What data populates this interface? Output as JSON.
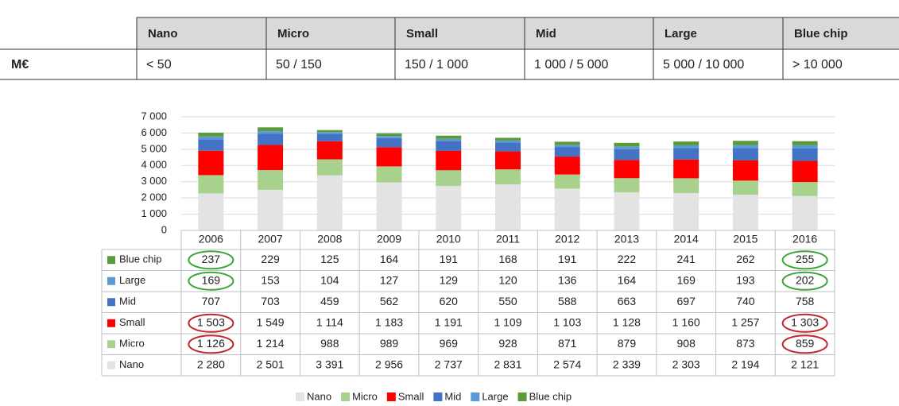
{
  "size_table": {
    "header": [
      "Nano",
      "Micro",
      "Small",
      "Mid",
      "Large",
      "Blue chip"
    ],
    "row": [
      "M€",
      "< 50",
      "50 / 150",
      "150 / 1 000",
      "1 000 / 5 000",
      "5 000 / 10 000",
      "> 10 000"
    ]
  },
  "chart_data": {
    "type": "bar",
    "stacked": true,
    "categories": [
      "2006",
      "2007",
      "2008",
      "2009",
      "2010",
      "2011",
      "2012",
      "2013",
      "2014",
      "2015",
      "2016"
    ],
    "series": [
      {
        "name": "Nano",
        "color": "#e3e3e3",
        "values": [
          2280,
          2501,
          3391,
          2956,
          2737,
          2831,
          2574,
          2339,
          2303,
          2194,
          2121
        ],
        "value_labels": [
          "2 280",
          "2 501",
          "3 391",
          "2 956",
          "2 737",
          "2 831",
          "2 574",
          "2 339",
          "2 303",
          "2 194",
          "2 121"
        ]
      },
      {
        "name": "Micro",
        "color": "#a9d18e",
        "values": [
          1126,
          1214,
          988,
          989,
          969,
          928,
          871,
          879,
          908,
          873,
          859
        ],
        "value_labels": [
          "1 126",
          "1 214",
          "988",
          "989",
          "969",
          "928",
          "871",
          "879",
          "908",
          "873",
          "859"
        ]
      },
      {
        "name": "Small",
        "color": "#ff0000",
        "values": [
          1503,
          1549,
          1114,
          1183,
          1191,
          1109,
          1103,
          1128,
          1160,
          1257,
          1303
        ],
        "value_labels": [
          "1 503",
          "1 549",
          "1 114",
          "1 183",
          "1 191",
          "1 109",
          "1 103",
          "1 128",
          "1 160",
          "1 257",
          "1 303"
        ]
      },
      {
        "name": "Mid",
        "color": "#4472c4",
        "values": [
          707,
          703,
          459,
          562,
          620,
          550,
          588,
          663,
          697,
          740,
          758
        ]
      },
      {
        "name": "Large",
        "color": "#5b9bd5",
        "values": [
          169,
          153,
          104,
          127,
          129,
          120,
          136,
          164,
          169,
          193,
          202
        ]
      },
      {
        "name": "Blue chip",
        "color": "#5a9a3a",
        "values": [
          237,
          229,
          125,
          164,
          191,
          168,
          191,
          222,
          241,
          262,
          255
        ]
      }
    ],
    "ylim": [
      0,
      7000
    ],
    "yticks": [
      0,
      {
        "value": 1000,
        "label": "1 000"
      },
      {
        "value": 2000,
        "label": "2 000"
      },
      {
        "value": 3000,
        "label": "3 000"
      },
      {
        "value": 4000,
        "label": "4 000"
      },
      {
        "value": 5000,
        "label": "5 000"
      },
      {
        "value": 6000,
        "label": "6 000"
      },
      {
        "value": 7000,
        "label": "7 000"
      }
    ],
    "grid": true,
    "legend": "bottom"
  }
}
